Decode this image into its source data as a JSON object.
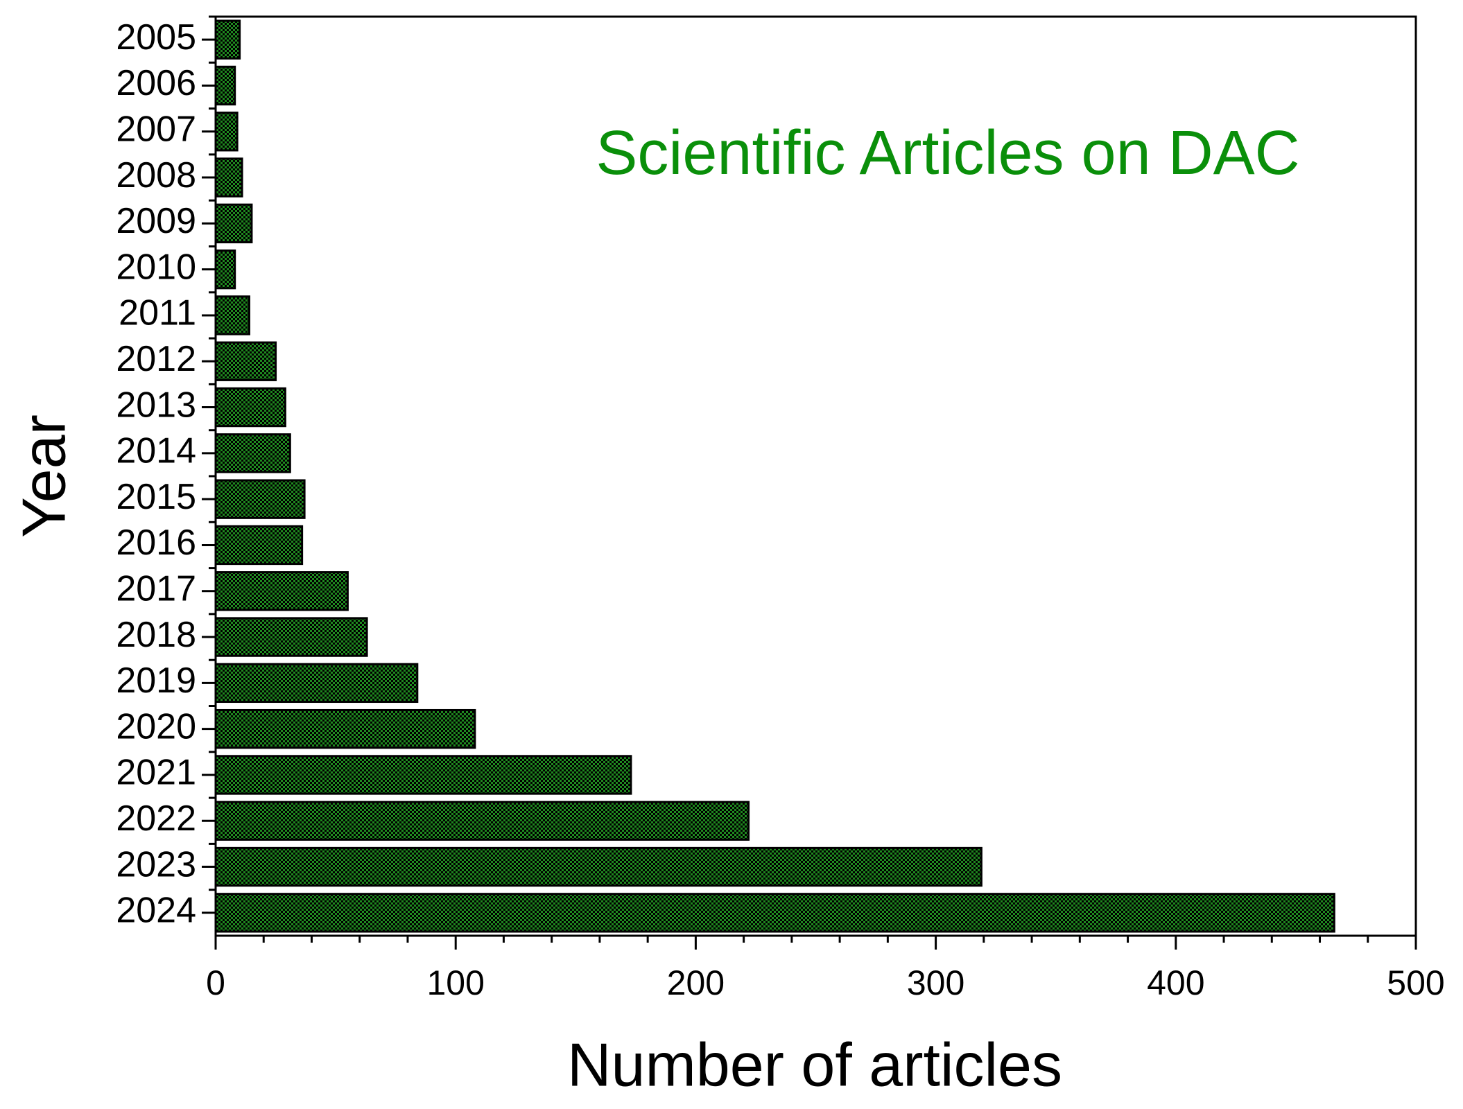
{
  "chart_data": {
    "type": "bar",
    "orientation": "horizontal",
    "title": "Scientific Articles on DAC",
    "xlabel": "Number of articles",
    "ylabel": "Year",
    "categories": [
      "2005",
      "2006",
      "2007",
      "2008",
      "2009",
      "2010",
      "2011",
      "2012",
      "2013",
      "2014",
      "2015",
      "2016",
      "2017",
      "2018",
      "2019",
      "2020",
      "2021",
      "2022",
      "2023",
      "2024"
    ],
    "values": [
      10,
      8,
      9,
      11,
      15,
      8,
      14,
      25,
      29,
      31,
      37,
      36,
      55,
      63,
      84,
      108,
      173,
      222,
      319,
      466
    ],
    "color": "#1f8a1f",
    "title_color": "#0a8f0a",
    "xlim": [
      0,
      500
    ],
    "xticks": [
      0,
      100,
      200,
      300,
      400,
      500
    ],
    "grid": false
  }
}
